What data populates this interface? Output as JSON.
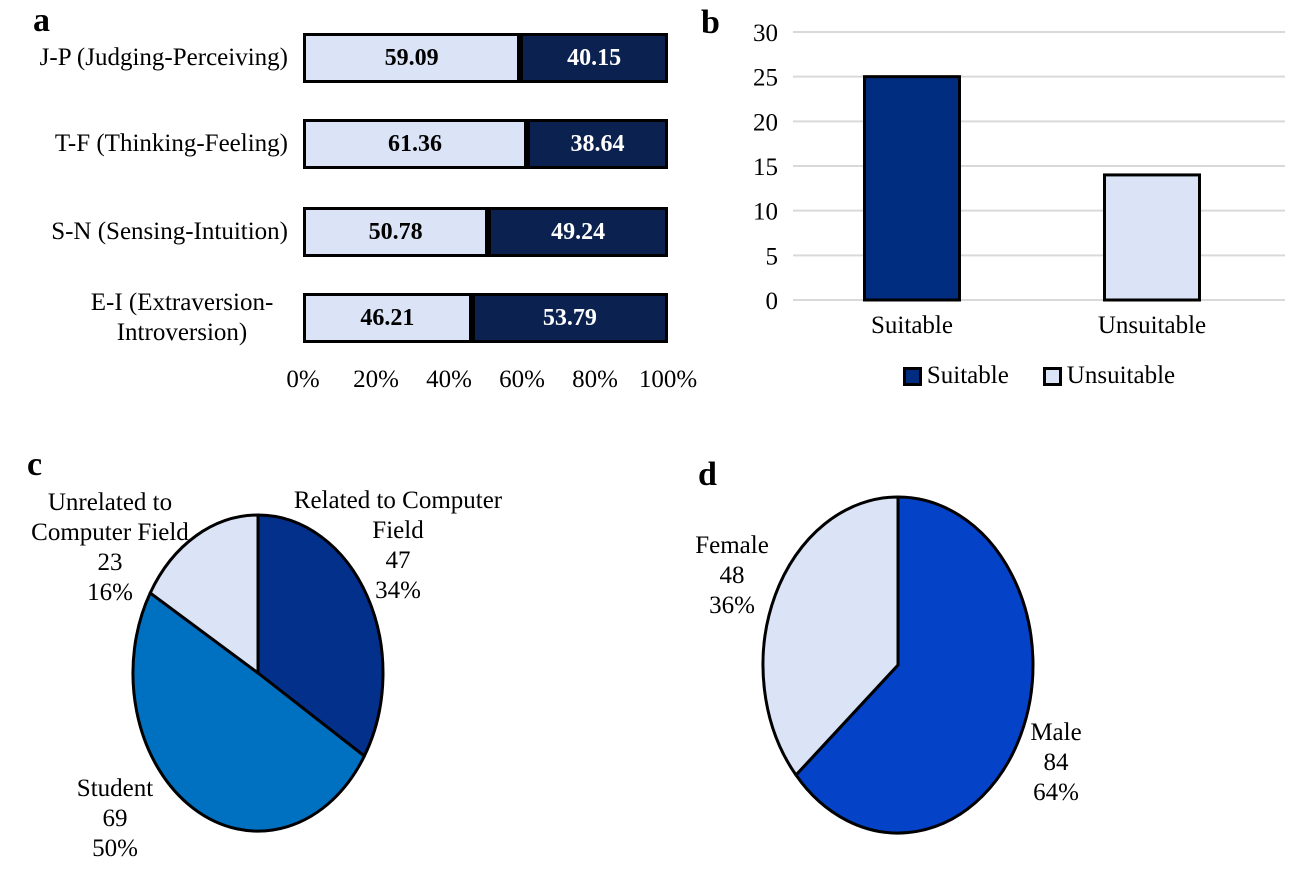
{
  "panels": {
    "a": {
      "letter": "a"
    },
    "b": {
      "letter": "b"
    },
    "c": {
      "letter": "c"
    },
    "d": {
      "letter": "d"
    }
  },
  "colors": {
    "light_blue": "#dae4f6",
    "dark_navy": "#0b2150",
    "medium_navy": "#012d81",
    "pie_navy": "#02308a",
    "medium_blue": "#0070c0",
    "royal_blue": "#0442c7",
    "gridline": "#d9d9d9",
    "stroke": "#000000"
  },
  "chart_data": [
    {
      "id": "a",
      "type": "bar",
      "subtype": "stacked-horizontal",
      "categories": [
        "J-P (Judging-Perceiving)",
        "T-F (Thinking-Feeling)",
        "S-N (Sensing-Intuition)",
        "E-I (Extraversion-Introversion)"
      ],
      "series": [
        {
          "name": "left-segment",
          "color": "#dae4f6",
          "values": [
            59.09,
            61.36,
            50.78,
            46.21
          ]
        },
        {
          "name": "right-segment",
          "color": "#0b2150",
          "values": [
            40.15,
            38.64,
            49.24,
            53.79
          ]
        }
      ],
      "xticks": [
        "0%",
        "20%",
        "40%",
        "60%",
        "80%",
        "100%"
      ],
      "xlim": [
        0,
        100
      ],
      "grid": false
    },
    {
      "id": "b",
      "type": "bar",
      "subtype": "vertical",
      "categories": [
        "Suitable",
        "Unsuitable"
      ],
      "values": [
        25,
        14
      ],
      "bar_colors": [
        "#012d81",
        "#dae4f6"
      ],
      "yticks": [
        0,
        5,
        10,
        15,
        20,
        25,
        30
      ],
      "ylim": [
        0,
        30
      ],
      "grid": true,
      "legend": [
        "Suitable",
        "Unsuitable"
      ],
      "legend_position": "bottom"
    },
    {
      "id": "c",
      "type": "pie",
      "start_angle_deg": 0,
      "direction": "clockwise",
      "slices": [
        {
          "label": "Related to Computer Field",
          "value": 47,
          "pct": "34%",
          "color": "#02308a"
        },
        {
          "label": "Student",
          "value": 69,
          "pct": "50%",
          "color": "#0070c0"
        },
        {
          "label": "Unrelated to Computer Field",
          "value": 23,
          "pct": "16%",
          "color": "#dae4f6"
        }
      ]
    },
    {
      "id": "d",
      "type": "pie",
      "start_angle_deg": 0,
      "direction": "clockwise",
      "slices": [
        {
          "label": "Male",
          "value": 84,
          "pct": "64%",
          "color": "#0442c7"
        },
        {
          "label": "Female",
          "value": 48,
          "pct": "36%",
          "color": "#dae4f6"
        }
      ]
    }
  ]
}
